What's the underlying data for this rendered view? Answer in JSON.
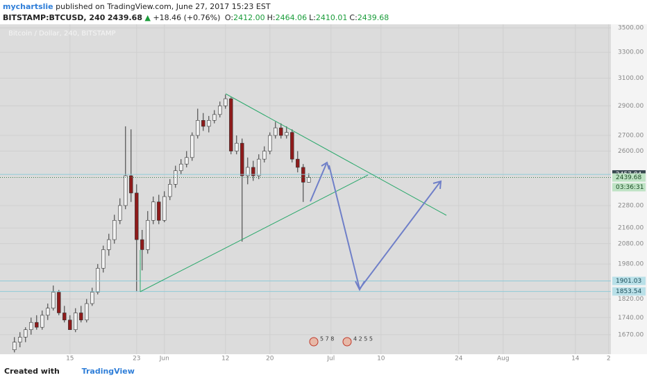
{
  "header": {
    "author": "mychartslie",
    "published": "published on TradingView.com, June 27, 2017 15:23 EST"
  },
  "ticker": {
    "symbol": "BITSTAMP:BTCUSD, 240",
    "last": "2439.68",
    "arrow": "▲",
    "change": "+18.46 (+0.76%)",
    "ohlc": [
      {
        "label": "O:",
        "value": "2412.00"
      },
      {
        "label": "H:",
        "value": "2464.06"
      },
      {
        "label": "L:",
        "value": "2410.01"
      },
      {
        "label": "C:",
        "value": "2439.68"
      }
    ]
  },
  "chart_data": {
    "type": "candlestick",
    "title": "Bitcoin / Dollar, 240, BITSTAMP",
    "log_scale": true,
    "grid": true,
    "up_color": "#f2f2f2",
    "down_color": "#8e1b1b",
    "wick_color": "#333333",
    "xlim": [
      1.4,
      111.4
    ],
    "ylim": [
      1593,
      3530
    ],
    "xticks": [
      {
        "value": 14,
        "label": "15"
      },
      {
        "value": 26,
        "label": "23"
      },
      {
        "value": 31,
        "label": "Jun"
      },
      {
        "value": 42,
        "label": "12"
      },
      {
        "value": 50,
        "label": "20"
      },
      {
        "value": 61,
        "label": "Jul"
      },
      {
        "value": 70,
        "label": "10"
      },
      {
        "value": 84,
        "label": "24"
      },
      {
        "value": 92,
        "label": "Aug"
      },
      {
        "value": 105,
        "label": "14"
      },
      {
        "value": 111,
        "label": "2"
      }
    ],
    "yticks": [
      {
        "value": 3500,
        "label": "3500.00"
      },
      {
        "value": 3300,
        "label": "3300.00"
      },
      {
        "value": 3100,
        "label": "3100.00"
      },
      {
        "value": 2900,
        "label": "2900.00"
      },
      {
        "value": 2700,
        "label": "2700.00"
      },
      {
        "value": 2600,
        "label": "2600.00"
      },
      {
        "value": 2280,
        "label": "2280.00"
      },
      {
        "value": 2160,
        "label": "2160.00"
      },
      {
        "value": 2080,
        "label": "2080.00"
      },
      {
        "value": 1980,
        "label": "1980.00"
      },
      {
        "value": 1820,
        "label": "1820.00"
      },
      {
        "value": 1740,
        "label": "1740.00"
      },
      {
        "value": 1670,
        "label": "1670.00"
      }
    ],
    "candles": {
      "x": [
        4,
        5,
        6,
        7,
        8,
        9,
        10,
        11,
        12,
        13,
        14,
        15,
        16,
        17,
        18,
        19,
        20,
        21,
        22,
        23,
        24,
        25,
        26,
        27,
        28,
        29,
        30,
        31,
        32,
        33,
        34,
        35,
        36,
        37,
        38,
        39,
        40,
        41,
        42,
        43,
        44,
        45,
        46,
        47,
        48,
        49,
        50,
        51,
        52,
        53,
        54,
        55,
        56,
        57
      ],
      "open": [
        1610,
        1640,
        1660,
        1690,
        1720,
        1700,
        1750,
        1780,
        1850,
        1760,
        1730,
        1690,
        1760,
        1730,
        1800,
        1850,
        1960,
        2050,
        2100,
        2200,
        2280,
        2450,
        2350,
        2100,
        2050,
        2200,
        2300,
        2200,
        2330,
        2400,
        2480,
        2520,
        2560,
        2700,
        2800,
        2760,
        2800,
        2840,
        2900,
        2950,
        2600,
        2650,
        2450,
        2500,
        2450,
        2550,
        2600,
        2700,
        2750,
        2700,
        2720,
        2550,
        2500,
        2412
      ],
      "high": [
        1660,
        1680,
        1700,
        1740,
        1750,
        1770,
        1800,
        1880,
        1860,
        1790,
        1750,
        1780,
        1790,
        1820,
        1870,
        1980,
        2070,
        2130,
        2230,
        2320,
        2760,
        2740,
        2400,
        2150,
        2250,
        2330,
        2340,
        2360,
        2430,
        2510,
        2550,
        2600,
        2720,
        2880,
        2850,
        2830,
        2870,
        2930,
        2980,
        2960,
        2700,
        2680,
        2560,
        2540,
        2580,
        2630,
        2720,
        2790,
        2780,
        2760,
        2740,
        2600,
        2520,
        2464.06
      ],
      "low": [
        1600,
        1620,
        1640,
        1670,
        1690,
        1690,
        1730,
        1770,
        1750,
        1720,
        1690,
        1680,
        1720,
        1720,
        1790,
        1840,
        1940,
        2020,
        2080,
        2180,
        2260,
        2300,
        1853.54,
        1950,
        2030,
        2180,
        2180,
        2190,
        2310,
        2380,
        2460,
        2500,
        2540,
        2680,
        2730,
        2720,
        2780,
        2820,
        2880,
        2580,
        2580,
        2090,
        2400,
        2420,
        2430,
        2530,
        2580,
        2680,
        2680,
        2680,
        2530,
        2470,
        2300,
        2410.01
      ],
      "close": [
        1640,
        1660,
        1690,
        1720,
        1700,
        1750,
        1780,
        1850,
        1760,
        1730,
        1690,
        1760,
        1730,
        1800,
        1850,
        1960,
        2050,
        2100,
        2200,
        2280,
        2450,
        2350,
        2100,
        2050,
        2200,
        2300,
        2200,
        2330,
        2400,
        2480,
        2520,
        2560,
        2700,
        2800,
        2760,
        2800,
        2840,
        2900,
        2950,
        2600,
        2650,
        2450,
        2500,
        2450,
        2550,
        2600,
        2700,
        2750,
        2700,
        2720,
        2550,
        2500,
        2412,
        2439.68
      ]
    },
    "price_lines": [
      {
        "value": 2457.84,
        "bg": "#37474f",
        "color": "#ffffff"
      },
      {
        "value": 2439.68,
        "bg": "#bfe3c5",
        "color": "#1b4d25",
        "dotted": true
      },
      {
        "value": 1901.03,
        "bg": "#b9e0e8",
        "color": "#1d4e5a"
      },
      {
        "value": 1853.54,
        "bg": "#b9e0e8",
        "color": "#1d4e5a"
      }
    ],
    "countdown": "03:36:31",
    "events": [
      "5 7 8",
      "4 2 5 5"
    ]
  },
  "footer": {
    "created": "Created with",
    "brand": "TradingView"
  }
}
